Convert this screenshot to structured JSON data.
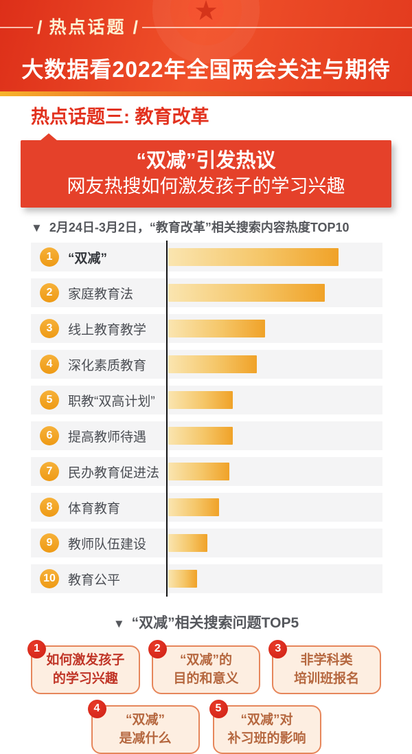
{
  "icons": {
    "star": "★",
    "down_triangle": "▼",
    "slash": "/"
  },
  "colors": {
    "header_red": "#e23a1e",
    "accent_red": "#e2321f",
    "banner_red": "#e5412a",
    "gold": "#f6b42a",
    "bar_orange": "#f0a228",
    "bar_light": "#fae5b0",
    "rank_badge_orange": "#ee9a15",
    "question_badge_red": "#d7281c",
    "card_bg": "#fdeee1",
    "card_border": "#e6865b",
    "card_text": "#b5673f",
    "card_text_highlight": "#c03527",
    "heading_gray": "#55575c",
    "row_bg": "#f4f4f5"
  },
  "header": {
    "badge": "热点话题",
    "title": "大数据看2022年全国两会关注与期待"
  },
  "section": {
    "title": "热点话题三: 教育改革"
  },
  "banner": {
    "line1": "“双减”引发热议",
    "line2": "网友热搜如何激发孩子的学习兴趣"
  },
  "chart": {
    "heading": "2月24日-3月2日，“教育改革”相关搜索内容热度TOP10",
    "rows": [
      {
        "rank": "1",
        "label": "“双减”",
        "value": 100
      },
      {
        "rank": "2",
        "label": "家庭教育法",
        "value": 92
      },
      {
        "rank": "3",
        "label": "线上教育教学",
        "value": 57
      },
      {
        "rank": "4",
        "label": "深化素质教育",
        "value": 52
      },
      {
        "rank": "5",
        "label": "职教“双高计划”",
        "value": 38
      },
      {
        "rank": "6",
        "label": "提高教师待遇",
        "value": 38
      },
      {
        "rank": "7",
        "label": "民办教育促进法",
        "value": 36
      },
      {
        "rank": "8",
        "label": "体育教育",
        "value": 30
      },
      {
        "rank": "9",
        "label": "教师队伍建设",
        "value": 23
      },
      {
        "rank": "10",
        "label": "教育公平",
        "value": 17
      }
    ]
  },
  "questions": {
    "heading": "“双减”相关搜索问题TOP5",
    "items": [
      {
        "rank": "1",
        "line1": "如何激发孩子",
        "line2": "的学习兴趣"
      },
      {
        "rank": "2",
        "line1": "“双减”的",
        "line2": "目的和意义"
      },
      {
        "rank": "3",
        "line1": "非学科类",
        "line2": "培训班报名"
      },
      {
        "rank": "4",
        "line1": "“双减”",
        "line2": "是减什么"
      },
      {
        "rank": "5",
        "line1": "“双减”对",
        "line2": "补习班的影响"
      }
    ]
  },
  "chart_data": {
    "type": "bar",
    "orientation": "horizontal",
    "title": "2月24日-3月2日，“教育改革”相关搜索内容热度TOP10",
    "categories": [
      "“双减”",
      "家庭教育法",
      "线上教育教学",
      "深化素质教育",
      "职教“双高计划”",
      "提高教师待遇",
      "民办教育促进法",
      "体育教育",
      "教师队伍建设",
      "教育公平"
    ],
    "values": [
      100,
      92,
      57,
      52,
      38,
      38,
      36,
      30,
      23,
      17
    ],
    "value_note": "relative search heat estimated from bar lengths, max bar = 100; no numeric axis labels shown",
    "xlabel": "",
    "ylabel": "",
    "xlim": [
      0,
      126
    ],
    "grid": false,
    "legend": false,
    "bar_color_gradient": [
      "#fae5b0",
      "#f0a228"
    ]
  }
}
